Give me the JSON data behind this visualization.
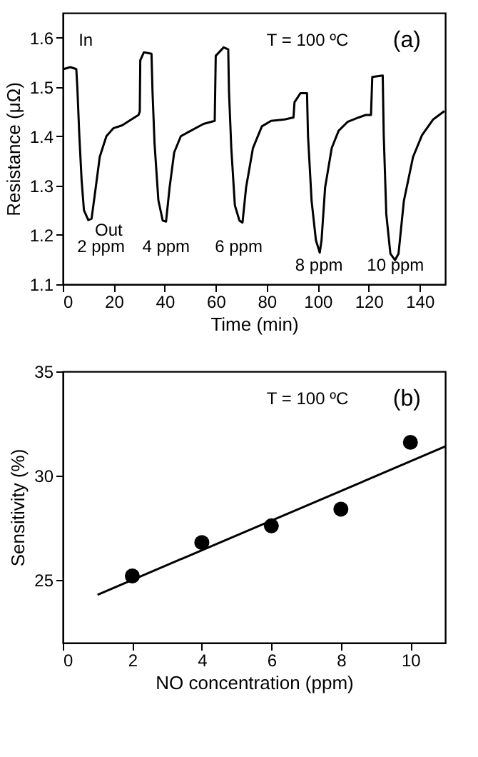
{
  "chart_data": [
    {
      "type": "line",
      "xlabel": "Time (min)",
      "ylabel": "Resistance (μΩ)",
      "xlim": [
        0,
        150
      ],
      "ylim": [
        1.1,
        1.65
      ],
      "xticks": [
        0,
        20,
        40,
        60,
        80,
        100,
        120,
        140
      ],
      "yticks": [
        1.1,
        1.2,
        1.3,
        1.4,
        1.5,
        1.6
      ],
      "grid": false,
      "line_style": "solid",
      "series": [
        {
          "color": "#000000",
          "x": [
            0.3,
            3,
            5.3,
            5.7,
            6.5,
            7.4,
            8.3,
            10,
            11.3,
            12.7,
            14.5,
            17.1,
            19.8,
            23.3,
            26.9,
            29.7,
            30.2,
            30.4,
            31.8,
            34.8,
            35.2,
            36,
            37.5,
            39.2,
            40.5,
            41.9,
            43.7,
            46.3,
            49.8,
            55.2,
            59.6,
            60,
            63.1,
            64.9,
            65.2,
            66.1,
            67.5,
            69.3,
            70.5,
            71.9,
            74.6,
            78.1,
            81.7,
            87,
            90.5,
            90.9,
            93.2,
            95.8,
            96.2,
            97.6,
            99.3,
            100.8,
            101.5,
            102.9,
            105.5,
            108.2,
            111.7,
            116.1,
            118.8,
            120.9,
            121.4,
            125.5,
            125.9,
            126.9,
            128.5,
            130.3,
            131.7,
            133.8,
            137.4,
            140.9,
            145.3,
            149.7
          ],
          "values": [
            1.536,
            1.54,
            1.536,
            1.5,
            1.4,
            1.31,
            1.25,
            1.23,
            1.233,
            1.287,
            1.358,
            1.4,
            1.416,
            1.422,
            1.434,
            1.443,
            1.45,
            1.554,
            1.57,
            1.567,
            1.49,
            1.385,
            1.27,
            1.229,
            1.227,
            1.296,
            1.367,
            1.4,
            1.41,
            1.425,
            1.431,
            1.563,
            1.58,
            1.576,
            1.49,
            1.376,
            1.26,
            1.229,
            1.225,
            1.296,
            1.376,
            1.42,
            1.431,
            1.434,
            1.438,
            1.469,
            1.487,
            1.487,
            1.4,
            1.269,
            1.189,
            1.164,
            1.189,
            1.296,
            1.376,
            1.411,
            1.429,
            1.438,
            1.443,
            1.443,
            1.52,
            1.523,
            1.402,
            1.242,
            1.162,
            1.149,
            1.162,
            1.269,
            1.358,
            1.402,
            1.434,
            1.451
          ]
        }
      ],
      "annotations": [
        "T = 100 ºC",
        "(a)",
        "In",
        "Out",
        "2 ppm",
        "4 ppm",
        "6 ppm",
        "8 ppm",
        "10 ppm"
      ]
    },
    {
      "type": "scatter",
      "xlabel": "NO concentration (ppm)",
      "ylabel": "Sensitivity (%)",
      "xlim": [
        0,
        11
      ],
      "ylim": [
        22,
        35
      ],
      "xticks": [
        0,
        2,
        4,
        6,
        8,
        10
      ],
      "yticks": [
        25,
        30,
        35
      ],
      "grid": false,
      "series": [
        {
          "marker": "circle",
          "color": "#000000",
          "x": [
            2,
            4,
            6,
            8,
            10
          ],
          "values": [
            25.2,
            26.8,
            27.6,
            28.4,
            31.6
          ]
        },
        {
          "type": "line",
          "color": "#000000",
          "x": [
            1,
            11
          ],
          "values": [
            24.3,
            31.4
          ]
        }
      ],
      "annotations": [
        "T = 100 ºC",
        "(b)"
      ]
    }
  ]
}
